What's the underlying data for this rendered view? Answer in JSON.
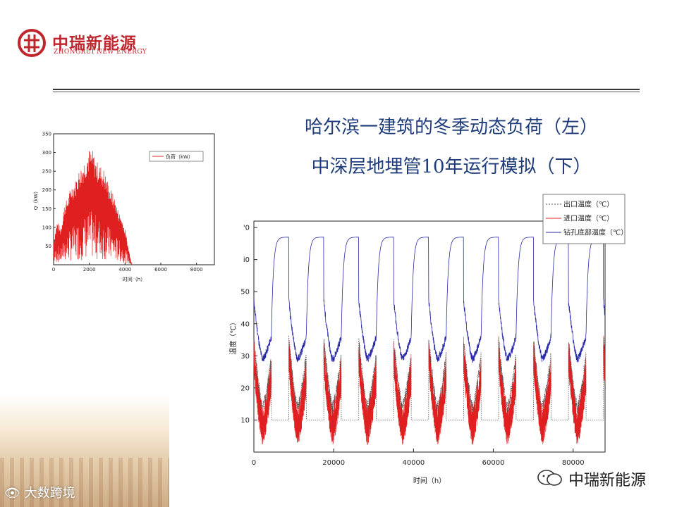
{
  "brand": {
    "name_cn": "中瑞新能源",
    "name_en": "ZHONGRUI NEW ENERGY",
    "color": "#c0272d"
  },
  "title": {
    "line1": "哈尔滨一建筑的冬季动态负荷（左）",
    "line2": "中深层地埋管10年运行模拟（下）",
    "color": "#1f3d7a"
  },
  "chart_data": [
    {
      "type": "line",
      "xlabel": "时间（h）",
      "ylabel": "Q（kW）",
      "xlim": [
        0,
        9000
      ],
      "ylim": [
        0,
        350
      ],
      "x_ticks": [
        "0",
        "2000",
        "4000",
        "6000",
        "8000"
      ],
      "y_ticks": [
        "50",
        "100",
        "150",
        "200",
        "250",
        "300",
        "350"
      ],
      "legend_position": "top-right",
      "series": [
        {
          "name": "负荷（kW）",
          "color": "#e02020",
          "x": [
            0,
            200,
            400,
            600,
            800,
            1000,
            1200,
            1400,
            1600,
            1800,
            2000,
            2200,
            2400,
            2600,
            2800,
            3000,
            3200,
            3400,
            3600,
            3800,
            4000,
            4200,
            4380
          ],
          "y": [
            60,
            110,
            90,
            150,
            170,
            200,
            210,
            235,
            250,
            270,
            290,
            285,
            260,
            250,
            240,
            215,
            190,
            170,
            140,
            120,
            90,
            40,
            0
          ]
        }
      ]
    },
    {
      "type": "line",
      "xlabel": "时间（h）",
      "ylabel": "温度（℃）",
      "xlim": [
        0,
        88000
      ],
      "ylim": [
        0,
        72
      ],
      "x_ticks": [
        "0",
        "20000",
        "40000",
        "60000",
        "80000"
      ],
      "y_ticks": [
        "10",
        "20",
        "30",
        "40",
        "50",
        "60",
        "70"
      ],
      "y_tick_display": [
        "10",
        "20",
        "30",
        "40",
        "50",
        "i0",
        "'0"
      ],
      "legend_position": "top-right",
      "period_hours": 8760,
      "heating_hours": 4380,
      "series": [
        {
          "name": "出口温度（℃）",
          "color": "#555555",
          "style": "dotted",
          "pattern": {
            "heating_start": 35,
            "heating_min": 14,
            "heating_end": 30,
            "idle": 10
          }
        },
        {
          "name": "进口温度（℃）",
          "color": "#e02020",
          "style": "solid",
          "pattern": {
            "heating_start": 28,
            "heating_min": 6,
            "heating_end": 22
          }
        },
        {
          "name": "钻孔底部温度（℃）",
          "color": "#2a2aa8",
          "style": "solid",
          "pattern": {
            "heating_start": 47,
            "heating_min": 29,
            "heating_end": 36,
            "recovery_max": 67
          }
        }
      ]
    }
  ],
  "watermarks": {
    "left": "大数跨境",
    "right": "中瑞新能源"
  }
}
